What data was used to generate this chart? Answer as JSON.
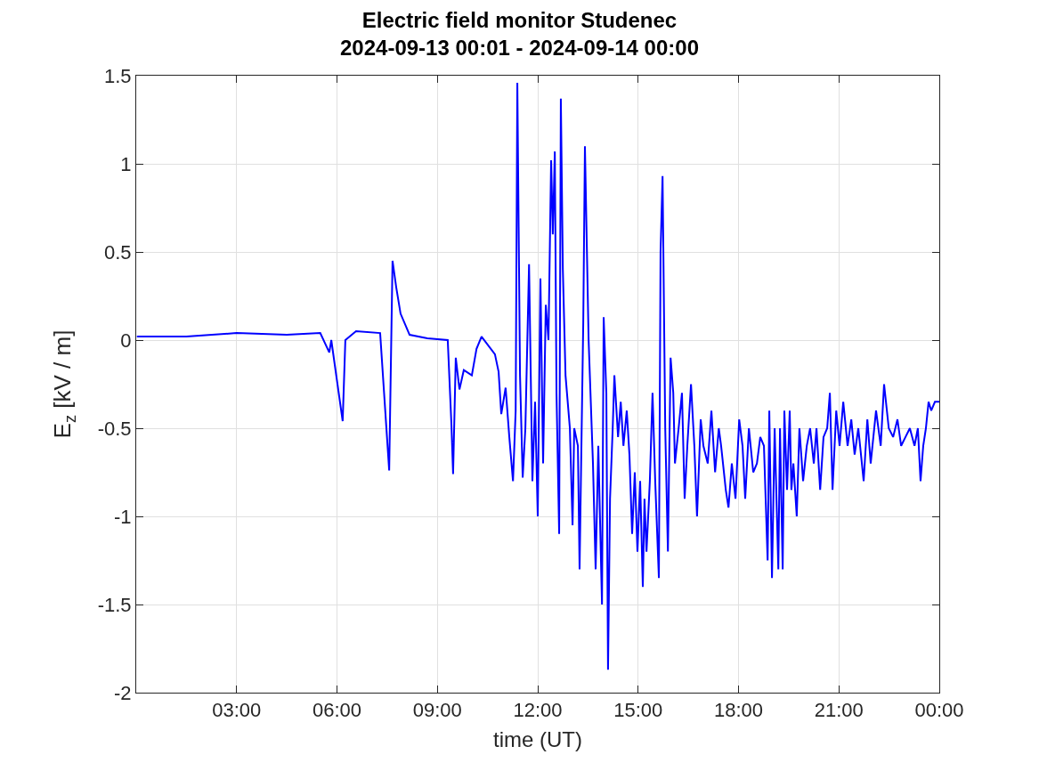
{
  "chart_data": {
    "type": "line",
    "title": "Electric field monitor Studenec\n2024-09-13 00:01 - 2024-09-14 00:00",
    "xlabel": "time (UT)",
    "ylabel": "E$_{z}$ [kV / m]",
    "xlim": [
      0,
      24
    ],
    "xticks": [
      {
        "value": 3,
        "label": "03:00"
      },
      {
        "value": 6,
        "label": "06:00"
      },
      {
        "value": 9,
        "label": "09:00"
      },
      {
        "value": 12,
        "label": "12:00"
      },
      {
        "value": 15,
        "label": "15:00"
      },
      {
        "value": 18,
        "label": "18:00"
      },
      {
        "value": 21,
        "label": "21:00"
      },
      {
        "value": 24,
        "label": "00:00"
      }
    ],
    "ylim": [
      -2,
      1.5
    ],
    "yticks": [
      -2,
      -1.5,
      -1,
      -0.5,
      0,
      0.5,
      1,
      1.5
    ],
    "grid": true,
    "marker": "none",
    "line_style": "solid",
    "x": [
      0.02,
      1.5,
      3,
      4.5,
      5.5,
      5.77,
      5.83,
      6.17,
      6.25,
      6.57,
      7.29,
      7.56,
      7.66,
      7.77,
      7.9,
      8.17,
      8.7,
      9.31,
      9.42,
      9.47,
      9.55,
      9.66,
      9.79,
      10.03,
      10.17,
      10.32,
      10.72,
      10.83,
      10.91,
      11.04,
      11.15,
      11.26,
      11.34,
      11.39,
      11.47,
      11.55,
      11.63,
      11.74,
      11.84,
      11.92,
      12,
      12.08,
      12.16,
      12.24,
      12.32,
      12.4,
      12.45,
      12.51,
      12.56,
      12.64,
      12.69,
      12.75,
      12.83,
      12.96,
      13.04,
      13.09,
      13.2,
      13.25,
      13.36,
      13.41,
      13.52,
      13.65,
      13.73,
      13.81,
      13.92,
      13.97,
      14.05,
      14.1,
      14.16,
      14.24,
      14.29,
      14.4,
      14.48,
      14.56,
      14.66,
      14.74,
      14.82,
      14.9,
      14.98,
      15.06,
      15.14,
      15.19,
      15.25,
      15.35,
      15.43,
      15.51,
      15.62,
      15.67,
      15.73,
      15.81,
      15.89,
      15.97,
      16.05,
      16.1,
      16.21,
      16.31,
      16.39,
      16.47,
      16.58,
      16.68,
      16.76,
      16.87,
      16.95,
      17.08,
      17.19,
      17.3,
      17.41,
      17.48,
      17.62,
      17.7,
      17.8,
      17.91,
      18.02,
      18.12,
      18.2,
      18.31,
      18.44,
      18.55,
      18.65,
      18.76,
      18.87,
      18.92,
      19,
      19.08,
      19.19,
      19.24,
      19.32,
      19.37,
      19.45,
      19.53,
      19.58,
      19.64,
      19.74,
      19.82,
      19.93,
      20.04,
      20.14,
      20.25,
      20.33,
      20.44,
      20.54,
      20.65,
      20.73,
      20.81,
      20.92,
      21.02,
      21.13,
      21.26,
      21.37,
      21.47,
      21.58,
      21.74,
      21.85,
      21.95,
      22.11,
      22.25,
      22.35,
      22.49,
      22.62,
      22.75,
      22.86,
      22.99,
      23.12,
      23.26,
      23.36,
      23.44,
      23.52,
      23.6,
      23.68,
      23.76,
      23.87,
      24
    ],
    "series": [
      {
        "color": "#0000ff",
        "values": [
          0.02,
          0.02,
          0.04,
          0.03,
          0.04,
          -0.07,
          0,
          -0.46,
          0,
          0.05,
          0.04,
          -0.74,
          0.45,
          0.3,
          0.15,
          0.03,
          0.01,
          0,
          -0.48,
          -0.76,
          -0.1,
          -0.28,
          -0.17,
          -0.2,
          -0.05,
          0.02,
          -0.08,
          -0.18,
          -0.42,
          -0.27,
          -0.55,
          -0.8,
          -0.4,
          1.46,
          -0.2,
          -0.78,
          -0.5,
          0.43,
          -0.8,
          -0.35,
          -1,
          0.35,
          -0.7,
          0.2,
          0,
          1.02,
          0.6,
          1.07,
          -0.3,
          -1.1,
          1.37,
          0.4,
          -0.2,
          -0.5,
          -1.05,
          -0.5,
          -0.6,
          -1.3,
          0.1,
          1.1,
          0,
          -0.7,
          -1.3,
          -0.6,
          -1.5,
          0.13,
          -0.3,
          -1.87,
          -0.9,
          -0.5,
          -0.2,
          -0.55,
          -0.35,
          -0.6,
          -0.4,
          -0.65,
          -1.1,
          -0.75,
          -1.2,
          -0.8,
          -1.4,
          -0.9,
          -1.2,
          -0.8,
          -0.3,
          -0.8,
          -1.35,
          0.5,
          0.93,
          -0.5,
          -1.2,
          -0.1,
          -0.3,
          -0.7,
          -0.5,
          -0.3,
          -0.9,
          -0.6,
          -0.25,
          -0.6,
          -1,
          -0.45,
          -0.6,
          -0.7,
          -0.4,
          -0.75,
          -0.5,
          -0.6,
          -0.85,
          -0.95,
          -0.7,
          -0.9,
          -0.45,
          -0.6,
          -0.9,
          -0.5,
          -0.75,
          -0.7,
          -0.55,
          -0.6,
          -1.25,
          -0.4,
          -1.35,
          -0.5,
          -1.3,
          -0.5,
          -1.3,
          -0.4,
          -0.85,
          -0.4,
          -0.85,
          -0.7,
          -1,
          -0.5,
          -0.8,
          -0.6,
          -0.5,
          -0.7,
          -0.5,
          -0.85,
          -0.55,
          -0.5,
          -0.3,
          -0.85,
          -0.4,
          -0.6,
          -0.35,
          -0.6,
          -0.45,
          -0.65,
          -0.5,
          -0.8,
          -0.45,
          -0.7,
          -0.4,
          -0.6,
          -0.25,
          -0.5,
          -0.55,
          -0.45,
          -0.6,
          -0.55,
          -0.5,
          -0.6,
          -0.5,
          -0.8,
          -0.6,
          -0.5,
          -0.35,
          -0.4,
          -0.35,
          -0.35
        ]
      }
    ]
  }
}
